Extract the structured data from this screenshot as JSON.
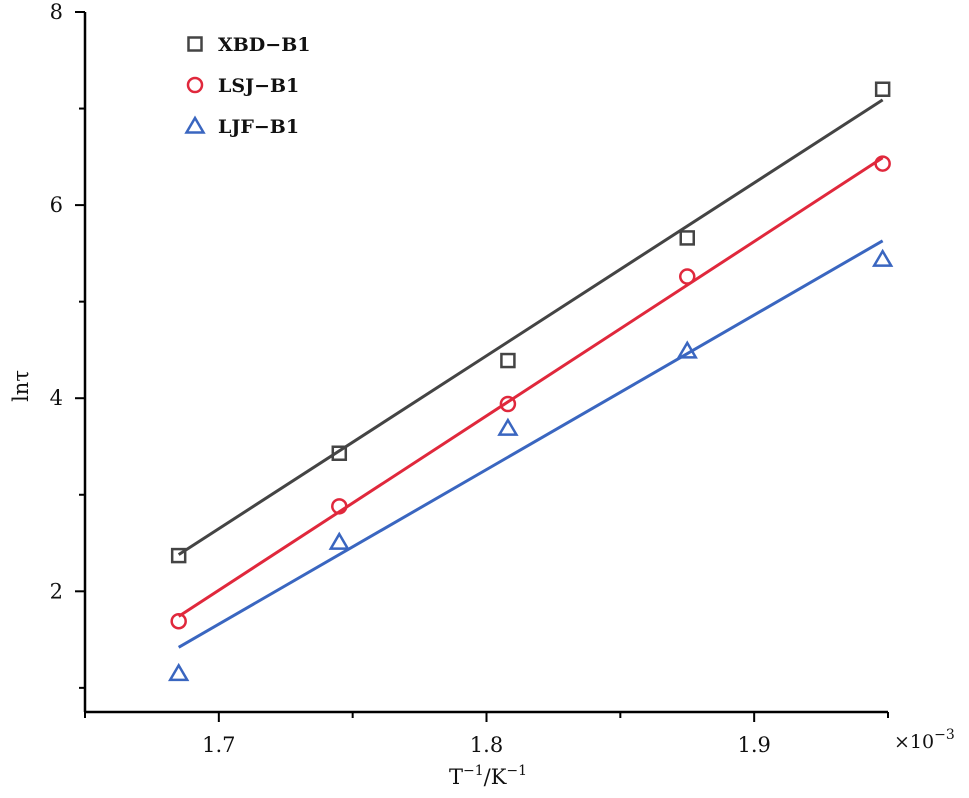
{
  "chart_data": {
    "type": "scatter",
    "xlabel": {
      "base": "T",
      "sup1": "−1",
      "sep": "/K",
      "sup2": "−1"
    },
    "ylabel": "lnτ",
    "x_multiplier": {
      "base": "×10",
      "exp": "−3"
    },
    "xlim": [
      1.65,
      1.95
    ],
    "ylim": [
      0.75,
      8
    ],
    "x_ticks": [
      1.7,
      1.8,
      1.9
    ],
    "x_tick_labels": [
      "1.7",
      "1.8",
      "1.9"
    ],
    "x_minor_ticks": [
      1.65,
      1.75,
      1.85,
      1.95
    ],
    "y_ticks": [
      2,
      4,
      6,
      8
    ],
    "y_tick_labels": [
      "2",
      "4",
      "6",
      "8"
    ],
    "y_minor_ticks": [
      1,
      3,
      5,
      7
    ],
    "grid": false,
    "legend_position": "top-left",
    "series": [
      {
        "name": "XBD−B1",
        "marker": "square",
        "color": "#444444",
        "x": [
          1.685,
          1.745,
          1.808,
          1.875,
          1.948
        ],
        "y": [
          2.37,
          3.43,
          4.39,
          5.66,
          7.2
        ],
        "fit_line": {
          "x": [
            1.685,
            1.948
          ],
          "y": [
            2.38,
            7.09
          ]
        }
      },
      {
        "name": "LSJ−B1",
        "marker": "circle",
        "color": "#e0283c",
        "x": [
          1.685,
          1.745,
          1.808,
          1.875,
          1.948
        ],
        "y": [
          1.69,
          2.88,
          3.94,
          5.26,
          6.43
        ],
        "fit_line": {
          "x": [
            1.685,
            1.948
          ],
          "y": [
            1.74,
            6.49
          ]
        }
      },
      {
        "name": "LJF−B1",
        "marker": "triangle",
        "color": "#3a66c0",
        "x": [
          1.685,
          1.745,
          1.808,
          1.875,
          1.948
        ],
        "y": [
          1.15,
          2.51,
          3.69,
          4.49,
          5.44
        ],
        "fit_line": {
          "x": [
            1.685,
            1.948
          ],
          "y": [
            1.42,
            5.63
          ]
        }
      }
    ]
  }
}
